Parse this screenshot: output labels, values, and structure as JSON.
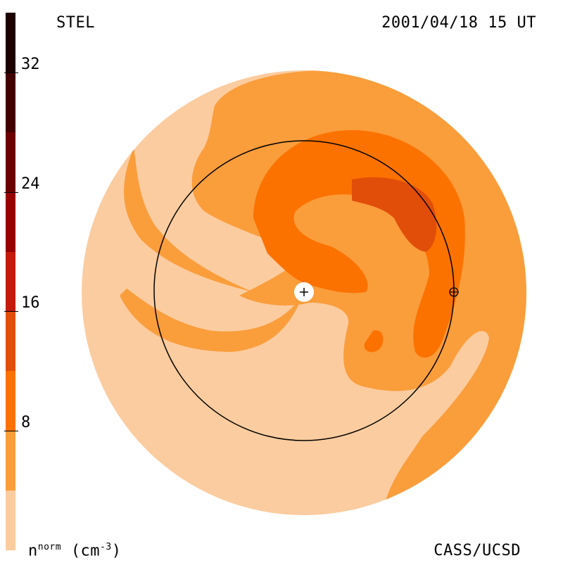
{
  "header": {
    "source": "STEL",
    "timestamp": "2001/04/18 15 UT"
  },
  "footer": {
    "credit": "CASS/UCSD",
    "units_base": "n",
    "units_sup": "norm",
    "units_paren_open": "(cm",
    "units_exp": "-3",
    "units_paren_close": ")"
  },
  "chart_data": {
    "type": "heatmap",
    "title": "",
    "quantity": "n^norm (cm^-3)",
    "colorbar": {
      "range": [
        0,
        36
      ],
      "ticks": [
        8,
        16,
        24,
        32
      ],
      "tick_labels": [
        "8",
        "16",
        "24",
        "32"
      ],
      "levels": [
        {
          "from": 0,
          "to": 4,
          "color": "#fbcc9f"
        },
        {
          "from": 4,
          "to": 8,
          "color": "#fa9d3b"
        },
        {
          "from": 8,
          "to": 12,
          "color": "#fb7200"
        },
        {
          "from": 12,
          "to": 16,
          "color": "#e14e0a"
        },
        {
          "from": 16,
          "to": 20,
          "color": "#c31a0a"
        },
        {
          "from": 20,
          "to": 24,
          "color": "#970000"
        },
        {
          "from": 24,
          "to": 28,
          "color": "#6c0000"
        },
        {
          "from": 28,
          "to": 32,
          "color": "#430000"
        },
        {
          "from": 32,
          "to": 36,
          "color": "#1d0000"
        }
      ]
    },
    "markers": [
      {
        "name": "Sun",
        "symbol": "+"
      },
      {
        "name": "Earth",
        "symbol": "⊕",
        "orbit": "1 AU circle"
      }
    ]
  }
}
